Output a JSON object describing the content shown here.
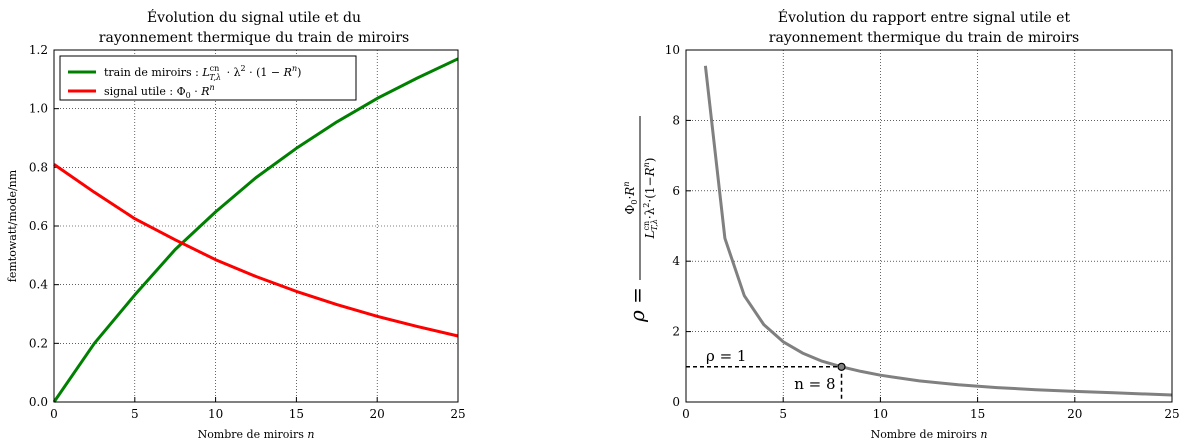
{
  "chart_data": [
    {
      "type": "line",
      "title_line1": "Évolution du signal utile et du",
      "title_line2": "rayonnement thermique du train de miroirs",
      "xlabel": "Nombre de miroirs n",
      "ylabel": "femtowatt/mode/nm",
      "xlim": [
        0,
        25
      ],
      "ylim": [
        0,
        1.2
      ],
      "xticks": [
        "0",
        "5",
        "10",
        "15",
        "20",
        "25"
      ],
      "yticks": [
        "0.0",
        "0.2",
        "0.4",
        "0.6",
        "0.8",
        "1.0",
        "1.2"
      ],
      "grid": true,
      "legend_position": "top-left",
      "x": [
        0,
        2.5,
        5,
        7.5,
        10,
        12.5,
        15,
        17.5,
        20,
        22.5,
        25
      ],
      "series": [
        {
          "name": "train de miroirs : L^cn_{T,λ} · λ² · (1 − Rⁿ)",
          "color": "#008000",
          "values": [
            0.0,
            0.2,
            0.365,
            0.52,
            0.648,
            0.765,
            0.865,
            0.955,
            1.035,
            1.105,
            1.17
          ]
        },
        {
          "name": "signal utile : Φ₀ · Rⁿ",
          "color": "#ff0000",
          "values": [
            0.81,
            0.715,
            0.625,
            0.553,
            0.485,
            0.428,
            0.377,
            0.332,
            0.292,
            0.257,
            0.225
          ]
        }
      ]
    },
    {
      "type": "line",
      "title_line1": "Évolution du rapport entre signal utile et",
      "title_line2": "rayonnement thermique du train de miroirs",
      "xlabel": "Nombre de miroirs n",
      "ylabel_lhs": "ρ =",
      "ylabel_num": "Φ₀·Rⁿ",
      "ylabel_den": "L^cn_{T,λ}·λ²·(1−Rⁿ)",
      "xlim": [
        0,
        25
      ],
      "ylim": [
        0,
        10
      ],
      "xticks": [
        "0",
        "5",
        "10",
        "15",
        "20",
        "25"
      ],
      "yticks": [
        "0",
        "2",
        "4",
        "6",
        "8",
        "10"
      ],
      "grid": true,
      "x": [
        1,
        2,
        3,
        4,
        5,
        6,
        7,
        8,
        9,
        10,
        12,
        14,
        16,
        18,
        20,
        22,
        25
      ],
      "series": [
        {
          "name": "",
          "color": "#808080",
          "values": [
            9.55,
            4.65,
            3.02,
            2.2,
            1.71,
            1.39,
            1.16,
            1.0,
            0.87,
            0.76,
            0.6,
            0.49,
            0.41,
            0.35,
            0.3,
            0.26,
            0.2
          ]
        }
      ],
      "annotation_rho": "ρ = 1",
      "annotation_n": "n = 8",
      "marker_point": [
        8,
        1.0
      ]
    }
  ]
}
